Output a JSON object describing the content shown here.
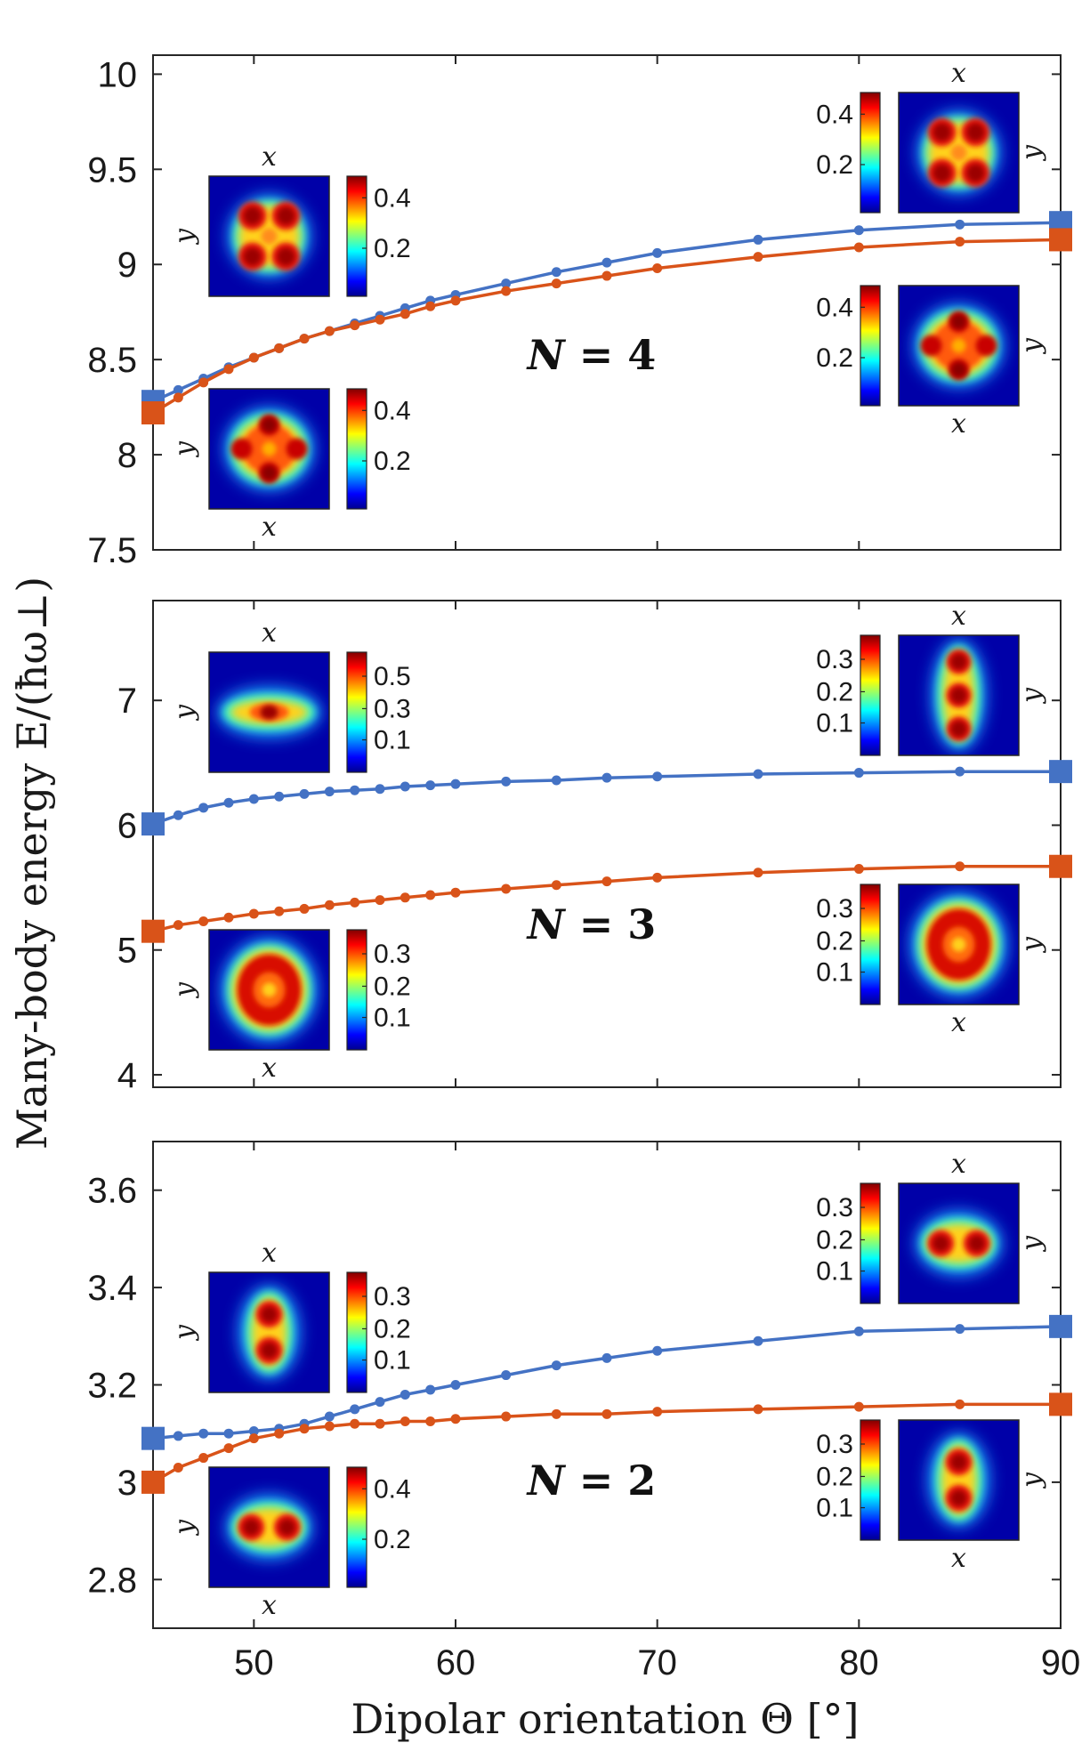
{
  "chart_data": {
    "type": "line",
    "xlabel": "Dipolar orientation Θ [°]",
    "ylabel": "Many-body energy E/(ħω⊥)",
    "colors": {
      "blue": "#4472c4",
      "orange": "#d95319"
    },
    "panels": [
      {
        "id": "N4",
        "label_prefix": "N",
        "label_eq": " = ",
        "label_value": "4",
        "xlim": [
          45,
          90
        ],
        "ylim": [
          7.5,
          10.1
        ],
        "xticks": [
          50,
          60,
          70,
          80,
          90
        ],
        "yticks": [
          7.5,
          8,
          8.5,
          9,
          9.5,
          10
        ],
        "ytick_labels": [
          "7.5",
          "8",
          "8.5",
          "9",
          "9.5",
          "10"
        ],
        "series": [
          {
            "name": "blue",
            "x": [
              45,
              46.25,
              47.5,
              48.75,
              50,
              51.25,
              52.5,
              53.75,
              55,
              56.25,
              57.5,
              58.75,
              60,
              62.5,
              65,
              67.5,
              70,
              75,
              80,
              85,
              90
            ],
            "y": [
              8.28,
              8.34,
              8.4,
              8.46,
              8.51,
              8.56,
              8.61,
              8.65,
              8.69,
              8.73,
              8.77,
              8.81,
              8.84,
              8.9,
              8.96,
              9.01,
              9.06,
              9.13,
              9.18,
              9.21,
              9.22
            ]
          },
          {
            "name": "orange",
            "x": [
              45,
              46.25,
              47.5,
              48.75,
              50,
              51.25,
              52.5,
              53.75,
              55,
              56.25,
              57.5,
              58.75,
              60,
              62.5,
              65,
              67.5,
              70,
              75,
              80,
              85,
              90
            ],
            "y": [
              8.22,
              8.3,
              8.38,
              8.45,
              8.51,
              8.56,
              8.61,
              8.65,
              8.68,
              8.71,
              8.74,
              8.78,
              8.81,
              8.86,
              8.9,
              8.94,
              8.98,
              9.04,
              9.09,
              9.12,
              9.13
            ]
          }
        ],
        "insets": [
          {
            "id": "tl",
            "pattern": "square4",
            "cb_ticks": [
              "0.4",
              "0.2"
            ]
          },
          {
            "id": "bl",
            "pattern": "diamond4",
            "cb_ticks": [
              "0.4",
              "0.2"
            ]
          },
          {
            "id": "tr",
            "pattern": "square4",
            "cb_ticks": [
              "0.4",
              "0.2"
            ]
          },
          {
            "id": "br",
            "pattern": "diamond4",
            "cb_ticks": [
              "0.4",
              "0.2"
            ]
          }
        ]
      },
      {
        "id": "N3",
        "label_prefix": "N",
        "label_eq": " = ",
        "label_value": "3",
        "xlim": [
          45,
          90
        ],
        "ylim": [
          3.9,
          7.8
        ],
        "xticks": [
          50,
          60,
          70,
          80,
          90
        ],
        "yticks": [
          4,
          5,
          6,
          7
        ],
        "ytick_labels": [
          "4",
          "5",
          "6",
          "7"
        ],
        "series": [
          {
            "name": "blue",
            "x": [
              45,
              46.25,
              47.5,
              48.75,
              50,
              51.25,
              52.5,
              53.75,
              55,
              56.25,
              57.5,
              58.75,
              60,
              62.5,
              65,
              67.5,
              70,
              75,
              80,
              85,
              90
            ],
            "y": [
              6.01,
              6.08,
              6.14,
              6.18,
              6.21,
              6.23,
              6.25,
              6.27,
              6.28,
              6.29,
              6.31,
              6.32,
              6.33,
              6.35,
              6.36,
              6.38,
              6.39,
              6.41,
              6.42,
              6.43,
              6.43
            ]
          },
          {
            "name": "orange",
            "x": [
              45,
              46.25,
              47.5,
              48.75,
              50,
              51.25,
              52.5,
              53.75,
              55,
              56.25,
              57.5,
              58.75,
              60,
              62.5,
              65,
              67.5,
              70,
              75,
              80,
              85,
              90
            ],
            "y": [
              5.15,
              5.2,
              5.23,
              5.26,
              5.29,
              5.31,
              5.33,
              5.36,
              5.38,
              5.4,
              5.42,
              5.44,
              5.46,
              5.49,
              5.52,
              5.55,
              5.58,
              5.62,
              5.65,
              5.67,
              5.67
            ]
          }
        ],
        "insets": [
          {
            "id": "tl",
            "pattern": "line3x",
            "cb_ticks": [
              "0.5",
              "0.3",
              "0.1"
            ]
          },
          {
            "id": "bl",
            "pattern": "ring",
            "cb_ticks": [
              "0.3",
              "0.2",
              "0.1"
            ]
          },
          {
            "id": "tr",
            "pattern": "line3y",
            "cb_ticks": [
              "0.3",
              "0.2",
              "0.1"
            ]
          },
          {
            "id": "br",
            "pattern": "ring",
            "cb_ticks": [
              "0.3",
              "0.2",
              "0.1"
            ]
          }
        ]
      },
      {
        "id": "N2",
        "label_prefix": "N",
        "label_eq": " = ",
        "label_value": "2",
        "xlim": [
          45,
          90
        ],
        "ylim": [
          2.7,
          3.7
        ],
        "xticks": [
          50,
          60,
          70,
          80,
          90
        ],
        "xtick_labels": [
          "50",
          "60",
          "70",
          "80",
          "90"
        ],
        "yticks": [
          2.8,
          3.0,
          3.2,
          3.4,
          3.6
        ],
        "ytick_labels": [
          "2.8",
          "3",
          "3.2",
          "3.4",
          "3.6"
        ],
        "series": [
          {
            "name": "blue",
            "x": [
              45,
              46.25,
              47.5,
              48.75,
              50,
              51.25,
              52.5,
              53.75,
              55,
              56.25,
              57.5,
              58.75,
              60,
              62.5,
              65,
              67.5,
              70,
              75,
              80,
              85,
              90
            ],
            "y": [
              3.09,
              3.095,
              3.1,
              3.1,
              3.105,
              3.11,
              3.12,
              3.135,
              3.15,
              3.165,
              3.18,
              3.19,
              3.2,
              3.22,
              3.24,
              3.255,
              3.27,
              3.29,
              3.31,
              3.315,
              3.32
            ]
          },
          {
            "name": "orange",
            "x": [
              45,
              46.25,
              47.5,
              48.75,
              50,
              51.25,
              52.5,
              53.75,
              55,
              56.25,
              57.5,
              58.75,
              60,
              62.5,
              65,
              67.5,
              70,
              75,
              80,
              85,
              90
            ],
            "y": [
              3.0,
              3.03,
              3.05,
              3.07,
              3.09,
              3.1,
              3.11,
              3.115,
              3.12,
              3.12,
              3.125,
              3.125,
              3.13,
              3.135,
              3.14,
              3.14,
              3.145,
              3.15,
              3.155,
              3.16,
              3.16
            ]
          }
        ],
        "insets": [
          {
            "id": "tl",
            "pattern": "line2y",
            "cb_ticks": [
              "0.3",
              "0.2",
              "0.1"
            ]
          },
          {
            "id": "bl",
            "pattern": "line2x",
            "cb_ticks": [
              "0.4",
              "0.2"
            ]
          },
          {
            "id": "tr",
            "pattern": "line2x",
            "cb_ticks": [
              "0.3",
              "0.2",
              "0.1"
            ]
          },
          {
            "id": "br",
            "pattern": "line2y",
            "cb_ticks": [
              "0.3",
              "0.2",
              "0.1"
            ]
          }
        ]
      }
    ],
    "inset_axis_labels": {
      "x": "x",
      "y": "y"
    }
  }
}
